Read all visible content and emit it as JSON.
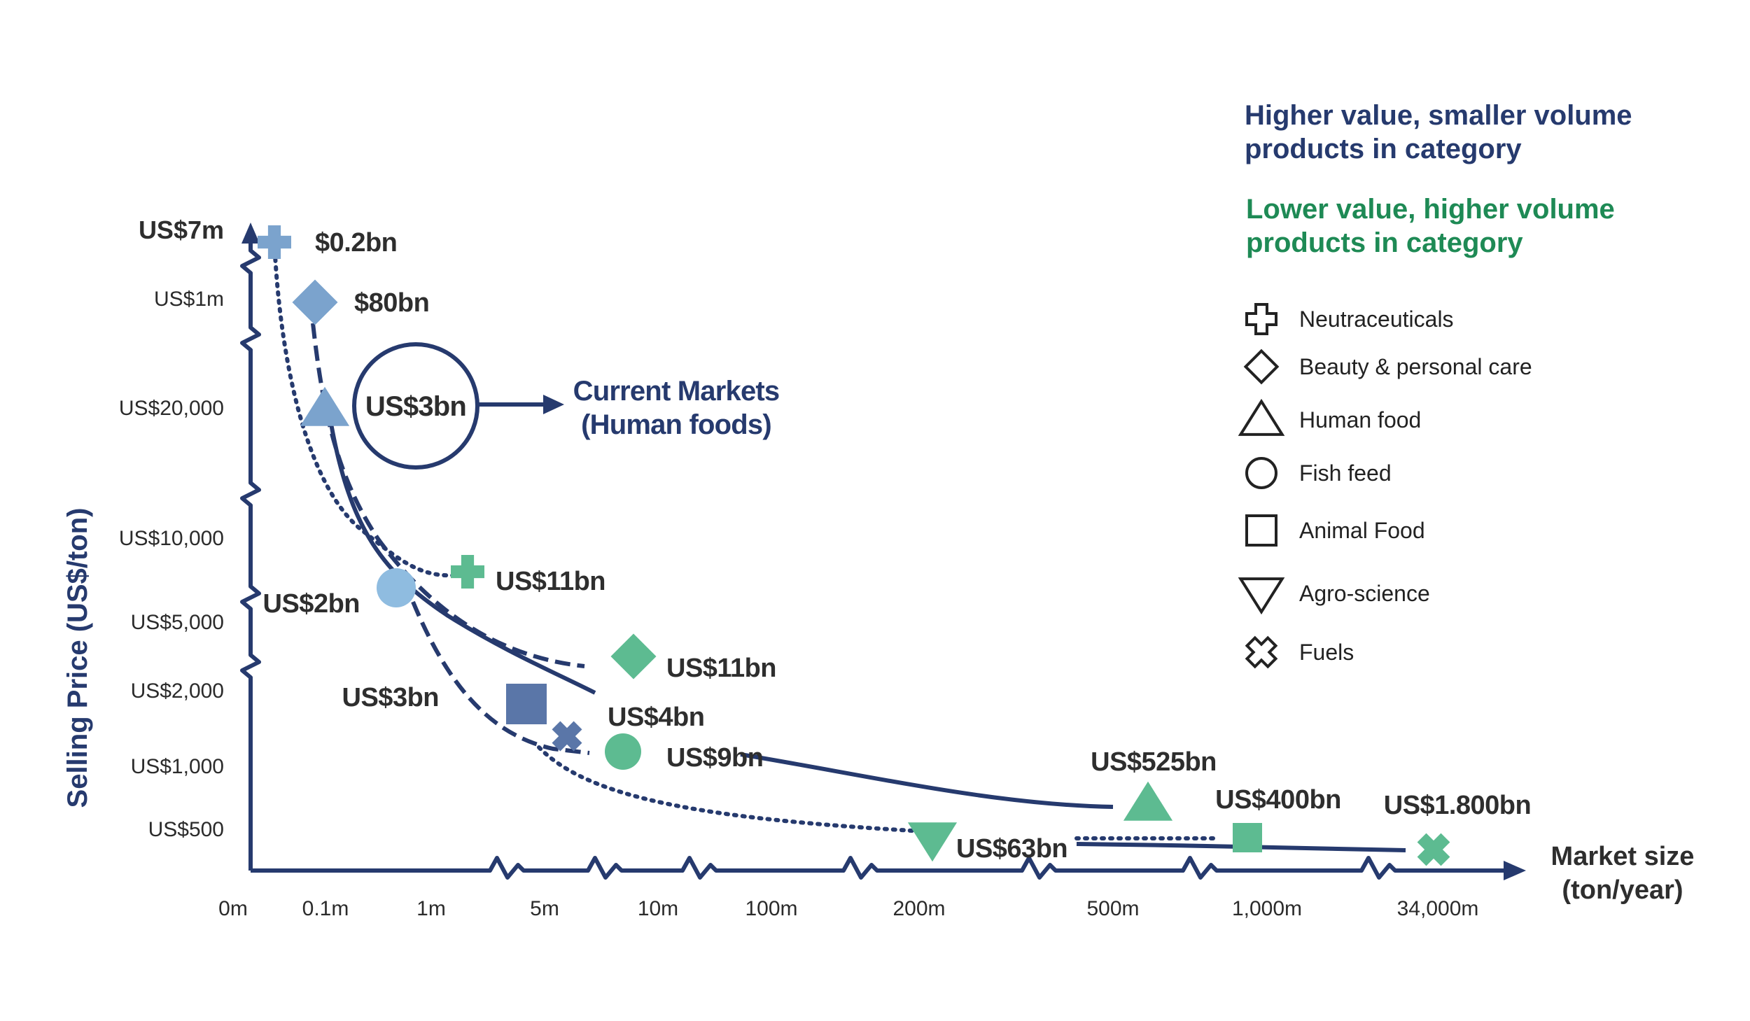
{
  "chart_data": {
    "type": "scatter",
    "title": "",
    "ylabel": "Selling Price (US$/ton)",
    "xlabel": "Market size (ton/year)",
    "xlabel_lines": [
      "Market size",
      "(ton/year)"
    ],
    "y_ticks": [
      "US$7m",
      "US$1m",
      "US$20,000",
      "US$10,000",
      "US$5,000",
      "US$2,000",
      "US$1,000",
      "US$500"
    ],
    "x_ticks": [
      "0m",
      "0.1m",
      "1m",
      "5m",
      "10m",
      "100m",
      "200m",
      "500m",
      "1,000m",
      "34,000m"
    ],
    "axis_breaks": "broken (zig-zag) scales on both axes",
    "grid": false,
    "notes": {
      "higher_value": [
        "Higher value, smaller volume",
        "products in category"
      ],
      "lower_value": [
        "Lower value, higher volume",
        "products in category"
      ]
    },
    "colors": {
      "axis": "#263a6e",
      "higher_value_dark": "#5a76a8",
      "higher_value_mid": "#7ba3cd",
      "higher_value_light": "#8fbce0",
      "lower_value": "#5dbb91",
      "note_green": "#1e8a55"
    },
    "categories": [
      {
        "name": "Neutraceuticals",
        "shape": "cross"
      },
      {
        "name": "Beauty & personal care",
        "shape": "diamond"
      },
      {
        "name": "Human food",
        "shape": "triangle"
      },
      {
        "name": "Fish feed",
        "shape": "circle"
      },
      {
        "name": "Animal Food",
        "shape": "square"
      },
      {
        "name": "Agro-science",
        "shape": "triangle-down"
      },
      {
        "name": "Fuels",
        "shape": "x-cross"
      }
    ],
    "series": [
      {
        "name": "Neutraceuticals",
        "line_style": "dotted",
        "points": [
          {
            "tier": "higher",
            "x_tick": "0m",
            "y_tick": "US$7m",
            "label": "$0.2bn"
          },
          {
            "tier": "lower",
            "x_tick": "1m",
            "y_tick": "US$10,000",
            "label": "US$11bn"
          }
        ]
      },
      {
        "name": "Beauty & personal care",
        "line_style": "dashed",
        "points": [
          {
            "tier": "higher",
            "x_tick": "0.1m",
            "y_tick": "US$1m",
            "label": "$80bn"
          },
          {
            "tier": "lower",
            "x_tick": "10m",
            "y_tick": "US$5,000",
            "label": "US$11bn"
          }
        ]
      },
      {
        "name": "Human food",
        "line_style": "solid",
        "points": [
          {
            "tier": "higher",
            "x_tick": "0.1m",
            "y_tick": "US$20,000",
            "label": "US$3bn"
          },
          {
            "tier": "lower",
            "x_tick": "500m",
            "y_tick": "US$500",
            "label": "US$525bn"
          }
        ]
      },
      {
        "name": "Fish feed",
        "line_style": "dashed",
        "points": [
          {
            "tier": "higher",
            "x_tick": "1m",
            "y_tick": "US$5,000",
            "label": "US$2bn"
          },
          {
            "tier": "lower",
            "x_tick": "10m",
            "y_tick": "US$1,000",
            "label": "US$9bn"
          }
        ]
      },
      {
        "name": "Animal Food",
        "line_style": "dotted",
        "points": [
          {
            "tier": "higher",
            "x_tick": "5m",
            "y_tick": "US$2,000",
            "label": "US$3bn"
          },
          {
            "tier": "lower",
            "x_tick": "1,000m",
            "y_tick": "US$500",
            "label": "US$400bn"
          }
        ]
      },
      {
        "name": "Agro-science",
        "line_style": "solid",
        "points": [
          {
            "tier": "lower",
            "x_tick": "200m",
            "y_tick": "US$500",
            "label": "US$63bn"
          }
        ]
      },
      {
        "name": "Fuels",
        "line_style": "solid",
        "points": [
          {
            "tier": "higher",
            "x_tick": "5m",
            "y_tick": "US$1,000",
            "label": "US$4bn"
          },
          {
            "tier": "lower",
            "x_tick": "34,000m",
            "y_tick": "US$500",
            "label": "US$1.800bn"
          }
        ]
      }
    ],
    "callout": {
      "bubble_label": "US$3bn",
      "text_lines": [
        "Current Markets",
        "(Human foods)"
      ]
    }
  }
}
